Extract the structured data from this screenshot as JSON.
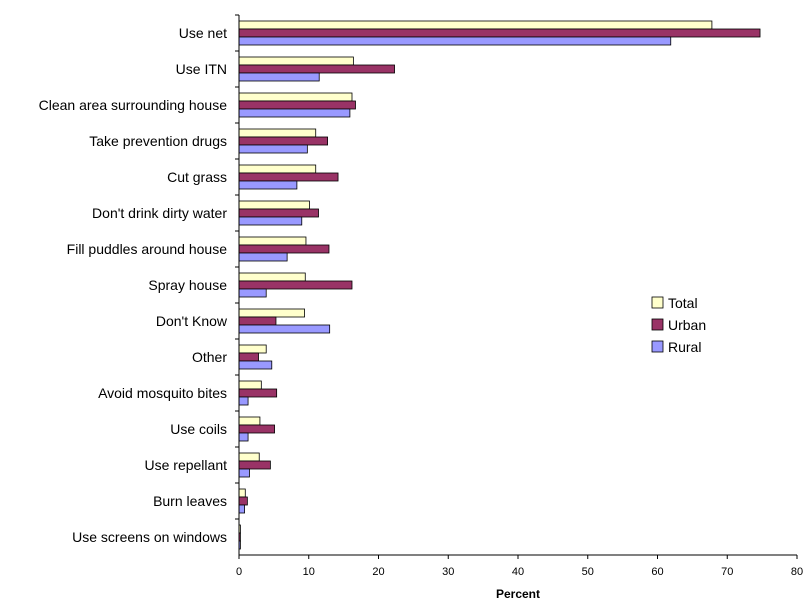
{
  "chart_data": {
    "type": "bar",
    "orientation": "horizontal",
    "xlabel": "Percent",
    "xlim": [
      0,
      80
    ],
    "xticks": [
      0,
      10,
      20,
      30,
      40,
      50,
      60,
      70,
      80
    ],
    "grid": false,
    "legend_position": "right",
    "categories": [
      "Use net",
      "Use ITN",
      "Clean area surrounding house",
      "Take prevention drugs",
      "Cut grass",
      "Don't drink dirty water",
      "Fill puddles around house",
      "Spray house",
      "Don't Know",
      "Other",
      "Avoid mosquito bites",
      "Use coils",
      "Use repellant",
      "Burn leaves",
      "Use screens on windows"
    ],
    "series": [
      {
        "name": "Total",
        "color": "#FFFFCC",
        "values": [
          67.8,
          16.4,
          16.2,
          11.0,
          11.0,
          10.1,
          9.6,
          9.5,
          9.4,
          3.9,
          3.2,
          3.0,
          2.9,
          0.9,
          0.2
        ]
      },
      {
        "name": "Urban",
        "color": "#993366",
        "values": [
          74.7,
          22.3,
          16.7,
          12.7,
          14.2,
          11.4,
          12.9,
          16.2,
          5.3,
          2.8,
          5.4,
          5.1,
          4.5,
          1.2,
          0.2
        ]
      },
      {
        "name": "Rural",
        "color": "#9999FF",
        "values": [
          61.9,
          11.5,
          15.9,
          9.8,
          8.3,
          9.0,
          6.9,
          3.9,
          13.0,
          4.7,
          1.3,
          1.3,
          1.5,
          0.8,
          0.2
        ]
      }
    ]
  }
}
